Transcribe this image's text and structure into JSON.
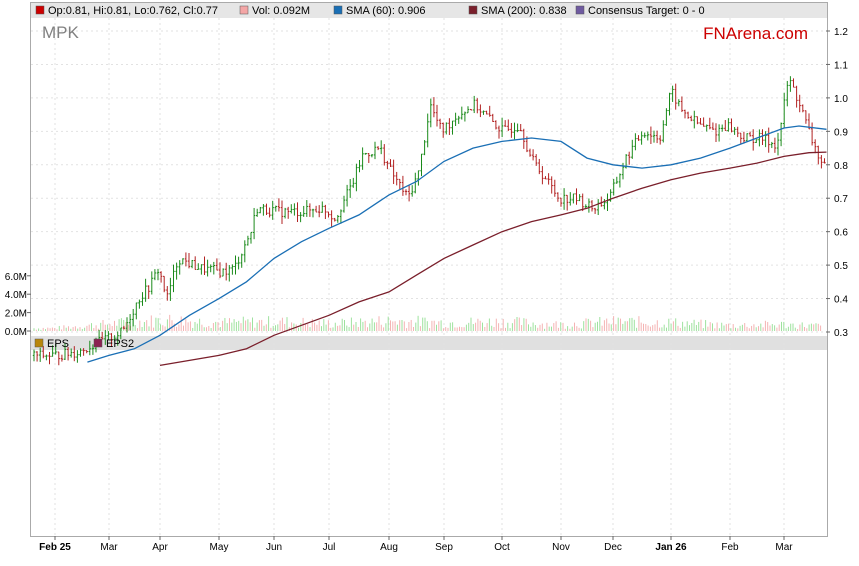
{
  "ticker": "MPK",
  "brand": "FNArena.com",
  "legend": [
    {
      "label": "Op:0.81, Hi:0.81, Lo:0.762, Cl:0.77",
      "color": "#cc0000"
    },
    {
      "label": "Vol: 0.092M",
      "color": "#f4a6a6"
    },
    {
      "label": "SMA (60): 0.906",
      "color": "#1a6fb5"
    },
    {
      "label": "SMA (200): 0.838",
      "color": "#7a1f2b"
    },
    {
      "label": "Consensus Target: 0 - 0",
      "color": "#6f5aa0"
    }
  ],
  "eps_legend": [
    {
      "label": "EPS",
      "color": "#b8860b"
    },
    {
      "label": "EPS2",
      "color": "#8b2252"
    }
  ],
  "chart_data": {
    "type": "candlestick",
    "price_axis": {
      "ticks": [
        0.3,
        0.4,
        0.5,
        0.6,
        0.7,
        0.8,
        0.9,
        1.0,
        1.1,
        1.2
      ],
      "labels": [
        "0.3",
        "0.4",
        "0.5",
        "0.6",
        "0.7",
        "0.8",
        "0.9",
        "1.0",
        "1.1",
        "1.2"
      ]
    },
    "volume_axis": {
      "ticks": [
        0,
        2,
        4,
        6
      ],
      "labels": [
        "0.0M",
        "2.0M",
        "4.0M",
        "6.0M"
      ],
      "unit": "M"
    },
    "months": [
      "Feb 25",
      "Mar",
      "Apr",
      "May",
      "Jun",
      "Jul",
      "Aug",
      "Sep",
      "Oct",
      "Nov",
      "Dec",
      "Jan 26",
      "Feb",
      "Mar"
    ],
    "bold_months": [
      "Feb 25",
      "Jan 26"
    ],
    "price_path": [
      [
        0,
        0.23
      ],
      [
        0.4,
        0.24
      ],
      [
        0.8,
        0.27
      ],
      [
        1.2,
        0.3
      ],
      [
        1.5,
        0.4
      ],
      [
        1.7,
        0.44
      ],
      [
        1.85,
        0.49
      ],
      [
        2.0,
        0.4
      ],
      [
        2.2,
        0.52
      ],
      [
        2.6,
        0.49
      ],
      [
        3.0,
        0.48
      ],
      [
        3.2,
        0.49
      ],
      [
        3.5,
        0.6
      ],
      [
        3.6,
        0.67
      ],
      [
        4.0,
        0.66
      ],
      [
        4.4,
        0.66
      ],
      [
        4.8,
        0.67
      ],
      [
        5.0,
        0.64
      ],
      [
        5.3,
        0.74
      ],
      [
        5.5,
        0.83
      ],
      [
        5.8,
        0.85
      ],
      [
        6.0,
        0.78
      ],
      [
        6.3,
        0.7
      ],
      [
        6.5,
        0.78
      ],
      [
        6.7,
        0.98
      ],
      [
        6.9,
        0.9
      ],
      [
        7.2,
        0.95
      ],
      [
        7.5,
        0.98
      ],
      [
        7.8,
        0.93
      ],
      [
        8.0,
        0.9
      ],
      [
        8.3,
        0.92
      ],
      [
        8.5,
        0.82
      ],
      [
        8.8,
        0.75
      ],
      [
        9.0,
        0.7
      ],
      [
        9.3,
        0.7
      ],
      [
        9.6,
        0.67
      ],
      [
        9.9,
        0.7
      ],
      [
        10.2,
        0.82
      ],
      [
        10.5,
        0.9
      ],
      [
        10.8,
        0.88
      ],
      [
        11.0,
        1.02
      ],
      [
        11.2,
        0.96
      ],
      [
        11.5,
        0.92
      ],
      [
        11.8,
        0.9
      ],
      [
        12.0,
        0.92
      ],
      [
        12.3,
        0.88
      ],
      [
        12.6,
        0.88
      ],
      [
        12.9,
        0.86
      ],
      [
        13.1,
        1.06
      ],
      [
        13.3,
        0.98
      ],
      [
        13.5,
        0.88
      ],
      [
        13.7,
        0.8
      ],
      [
        13.85,
        0.77
      ]
    ],
    "sma60": [
      [
        0.6,
        0.21
      ],
      [
        1.0,
        0.23
      ],
      [
        1.5,
        0.25
      ],
      [
        2.0,
        0.29
      ],
      [
        2.5,
        0.35
      ],
      [
        3.0,
        0.4
      ],
      [
        3.5,
        0.45
      ],
      [
        4.0,
        0.52
      ],
      [
        4.5,
        0.57
      ],
      [
        5.0,
        0.61
      ],
      [
        5.5,
        0.65
      ],
      [
        6.0,
        0.71
      ],
      [
        6.5,
        0.75
      ],
      [
        7.0,
        0.81
      ],
      [
        7.5,
        0.85
      ],
      [
        8.0,
        0.87
      ],
      [
        8.5,
        0.88
      ],
      [
        9.0,
        0.87
      ],
      [
        9.5,
        0.82
      ],
      [
        10.0,
        0.8
      ],
      [
        10.5,
        0.79
      ],
      [
        11.0,
        0.8
      ],
      [
        11.5,
        0.82
      ],
      [
        12.0,
        0.85
      ],
      [
        12.5,
        0.88
      ],
      [
        13.0,
        0.91
      ],
      [
        13.3,
        0.916
      ],
      [
        13.85,
        0.906
      ]
    ],
    "sma200": [
      [
        2.0,
        0.2
      ],
      [
        3.0,
        0.23
      ],
      [
        3.5,
        0.25
      ],
      [
        4.0,
        0.29
      ],
      [
        4.5,
        0.32
      ],
      [
        5.0,
        0.35
      ],
      [
        5.5,
        0.39
      ],
      [
        6.0,
        0.42
      ],
      [
        6.5,
        0.47
      ],
      [
        7.0,
        0.52
      ],
      [
        7.5,
        0.56
      ],
      [
        8.0,
        0.6
      ],
      [
        8.5,
        0.63
      ],
      [
        9.0,
        0.65
      ],
      [
        9.5,
        0.67
      ],
      [
        10.0,
        0.7
      ],
      [
        10.5,
        0.73
      ],
      [
        11.0,
        0.755
      ],
      [
        11.5,
        0.775
      ],
      [
        12.0,
        0.79
      ],
      [
        12.5,
        0.805
      ],
      [
        13.0,
        0.825
      ],
      [
        13.5,
        0.836
      ],
      [
        13.85,
        0.838
      ]
    ],
    "volume_path": [
      [
        0,
        0.3
      ],
      [
        1,
        0.8
      ],
      [
        2,
        1.2
      ],
      [
        3,
        0.9
      ],
      [
        4,
        1.0
      ],
      [
        5,
        0.8
      ],
      [
        6,
        1.1
      ],
      [
        7,
        0.9
      ],
      [
        8,
        1.0
      ],
      [
        9,
        0.7
      ],
      [
        10,
        1.0
      ],
      [
        11,
        0.9
      ],
      [
        12,
        0.6
      ],
      [
        13,
        0.7
      ],
      [
        13.85,
        0.5
      ]
    ]
  }
}
